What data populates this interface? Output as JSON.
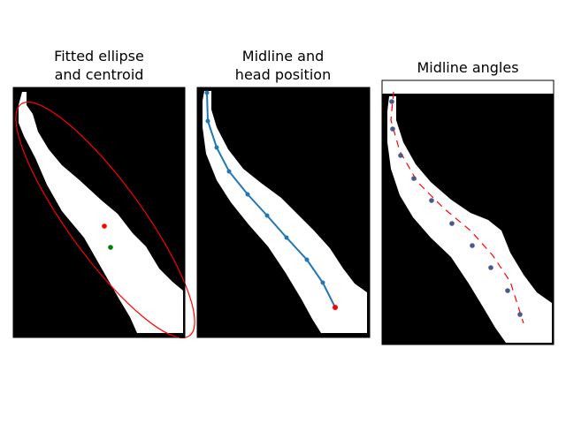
{
  "panels": [
    {
      "title_lines": [
        "Fitted ellipse",
        "and centroid"
      ],
      "ellipse_color": "#ff0000",
      "centroid_color": "#008000",
      "center_color": "#ff0000"
    },
    {
      "title_lines": [
        "Midline and",
        "head position"
      ],
      "midline_color": "#1f77b4",
      "head_color": "#ff0000"
    },
    {
      "title_lines": [
        "Midline angles"
      ],
      "point_color": "#1f77b4",
      "dash_color": "#ff0000"
    }
  ],
  "colors": {
    "background": "#000000",
    "worm": "#ffffff"
  }
}
